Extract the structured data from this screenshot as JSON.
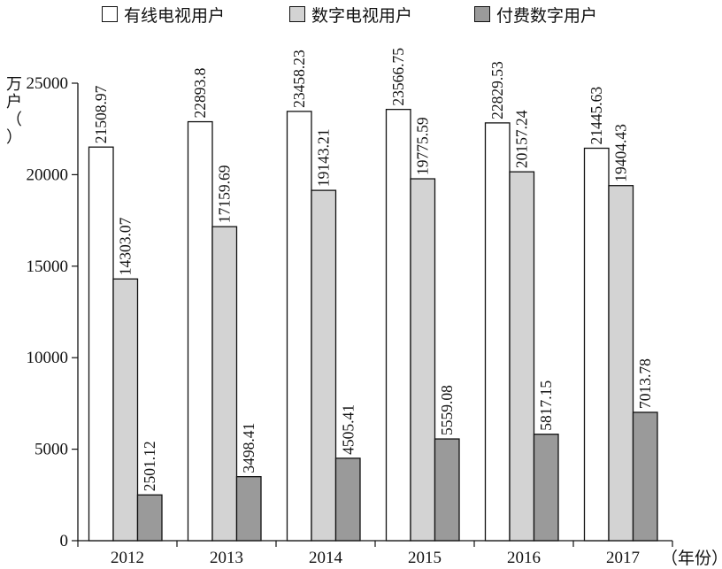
{
  "legend": {
    "items": [
      {
        "label": "有线电视用户",
        "color": "#ffffff"
      },
      {
        "label": "数字电视用户",
        "color": "#d3d3d3"
      },
      {
        "label": "付费数字用户",
        "color": "#9a9a9a"
      }
    ]
  },
  "axis": {
    "y_unit_chars": [
      "万",
      "户",
      "（",
      "）"
    ],
    "x_unit": "（年份）"
  },
  "chart_data": {
    "type": "bar",
    "categories": [
      "2012",
      "2013",
      "2014",
      "2015",
      "2016",
      "2017"
    ],
    "series": [
      {
        "name": "有线电视用户",
        "values": [
          21508.97,
          22893.8,
          23458.23,
          23566.75,
          22829.53,
          21445.63
        ]
      },
      {
        "name": "数字电视用户",
        "values": [
          14303.07,
          17159.69,
          19143.21,
          19775.59,
          20157.24,
          19404.43
        ]
      },
      {
        "name": "付费数字用户",
        "values": [
          2501.12,
          3498.41,
          4505.41,
          5559.08,
          5817.15,
          7013.78
        ]
      }
    ],
    "value_labels": [
      [
        "21508.97",
        "22893.8",
        "23458.23",
        "23566.75",
        "22829.53",
        "21445.63"
      ],
      [
        "14303.07",
        "17159.69",
        "19143.21",
        "19775.59",
        "20157.24",
        "19404.43"
      ],
      [
        "2501.12",
        "3498.41",
        "4505.41",
        "5559.08",
        "5817.15",
        "7013.78"
      ]
    ],
    "yticks": [
      "0",
      "5000",
      "10000",
      "15000",
      "20000",
      "25000"
    ],
    "ylim": [
      0,
      25000
    ],
    "grid": false,
    "legend_position": "top"
  }
}
